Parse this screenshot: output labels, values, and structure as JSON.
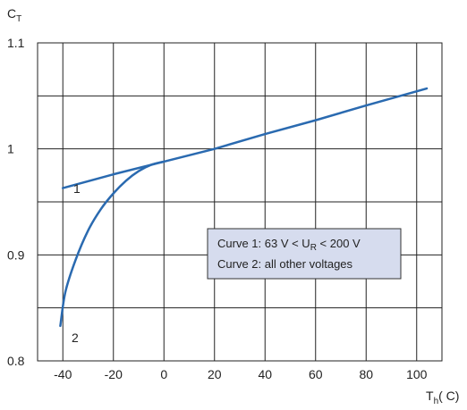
{
  "chart_data": {
    "type": "line",
    "ylabel_main": "C",
    "ylabel_sub": "T",
    "xlabel_main": "T",
    "xlabel_sub": "h",
    "xlabel_unit": "( C)",
    "xlim": [
      -50,
      110
    ],
    "ylim": [
      0.8,
      1.1
    ],
    "x_ticks": [
      -40,
      -20,
      0,
      20,
      40,
      60,
      80,
      100
    ],
    "x_tick_labels": [
      "-40",
      "-20",
      "0",
      "20",
      "40",
      "60",
      "80",
      "100"
    ],
    "y_ticks": [
      0.8,
      0.9,
      1.0,
      1.1
    ],
    "y_tick_labels": [
      "0.8",
      "0.9",
      "1",
      "1.1"
    ],
    "grid": true,
    "series_color": "#2a6ab0",
    "series": [
      {
        "name": "1",
        "x": [
          -40,
          -20,
          0,
          20,
          40,
          60,
          80,
          104
        ],
        "y": [
          0.963,
          0.976,
          0.988,
          1.0,
          1.014,
          1.027,
          1.041,
          1.057
        ]
      },
      {
        "name": "2",
        "x": [
          -41,
          -39,
          -35,
          -30,
          -25,
          -20,
          -15,
          -10,
          -5,
          0
        ],
        "y": [
          0.833,
          0.865,
          0.895,
          0.923,
          0.943,
          0.958,
          0.97,
          0.979,
          0.985,
          0.988
        ]
      }
    ],
    "legend": {
      "position": "lower-right",
      "background": "#d6dcee",
      "line1_a": "Curve 1: 63 V < U",
      "line1_sub": "R",
      "line1_b": " < 200 V",
      "line2": "Curve 2: all other voltages"
    }
  }
}
